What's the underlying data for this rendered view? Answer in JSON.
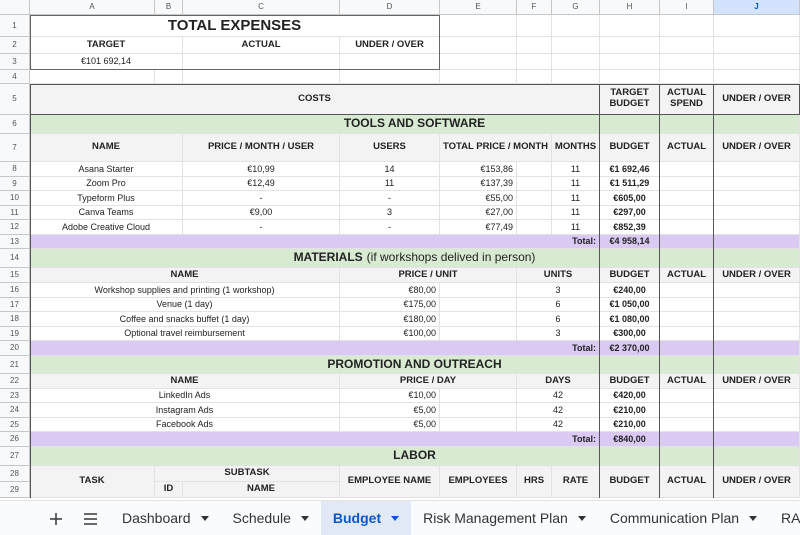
{
  "columns": [
    "A",
    "B",
    "C",
    "D",
    "E",
    "F",
    "G",
    "H",
    "I",
    "J"
  ],
  "row_numbers": [
    1,
    2,
    3,
    4,
    5,
    6,
    7,
    8,
    9,
    10,
    11,
    12,
    13,
    14,
    15,
    16,
    17,
    18,
    19,
    20,
    21,
    22,
    23,
    24,
    25,
    26,
    27,
    28,
    29
  ],
  "cells": {
    "A1": "TOTAL EXPENSES",
    "A2": "TARGET",
    "C2": "ACTUAL",
    "D2": "UNDER / OVER",
    "A3": "€101 692,14",
    "A5": "COSTS",
    "H5": "TARGET BUDGET",
    "I5": "ACTUAL SPEND",
    "J5": "UNDER / OVER",
    "A6": "TOOLS AND SOFTWARE",
    "A7": "NAME",
    "C7": "PRICE / MONTH / USER",
    "D7": "USERS",
    "E7": "TOTAL PRICE / MONTH",
    "G7": "MONTHS",
    "H7": "BUDGET",
    "I7": "ACTUAL",
    "J7": "UNDER / OVER",
    "A8": "Asana Starter",
    "C8": "€10,99",
    "D8": "14",
    "E8": "€153,86",
    "G8": "11",
    "H8": "€1 692,46",
    "A9": "Zoom Pro",
    "C9": "€12,49",
    "D9": "11",
    "E9": "€137,39",
    "G9": "11",
    "H9": "€1 511,29",
    "A10": "Typeform Plus",
    "C10": "-",
    "D10": "-",
    "E10": "€55,00",
    "G10": "11",
    "H10": "€605,00",
    "A11": "Canva Teams",
    "C11": "€9,00",
    "D11": "3",
    "E11": "€27,00",
    "G11": "11",
    "H11": "€297,00",
    "A12": "Adobe Creative Cloud",
    "C12": "-",
    "D12": "-",
    "E12": "€77,49",
    "G12": "11",
    "H12": "€852,39",
    "G13": "Total:",
    "H13": "€4 958,14",
    "A14": {
      "title": "MATERIALS",
      "note": "(if workshops delived in person)"
    },
    "A15": "NAME",
    "D15": "PRICE / UNIT",
    "F15": "UNITS",
    "H15": "BUDGET",
    "I15": "ACTUAL",
    "J15": "UNDER / OVER",
    "A16": "Workshop supplies and printing (1 workshop)",
    "D16": "€80,00",
    "F16": "3",
    "H16": "€240,00",
    "A17": "Venue (1 day)",
    "D17": "€175,00",
    "F17": "6",
    "H17": "€1 050,00",
    "A18": "Coffee and snacks buffet (1 day)",
    "D18": "€180,00",
    "F18": "6",
    "H18": "€1 080,00",
    "A19": "Optional travel reimbursement",
    "D19": "€100,00",
    "F19": "3",
    "H19": "€300,00",
    "G20": "Total:",
    "H20": "€2 370,00",
    "A21": "PROMOTION AND OUTREACH",
    "A22": "NAME",
    "D22": "PRICE / DAY",
    "F22": "DAYS",
    "H22": "BUDGET",
    "I22": "ACTUAL",
    "J22": "UNDER / OVER",
    "A23": "LinkedIn Ads",
    "D23": "€10,00",
    "F23": "42",
    "H23": "€420,00",
    "A24": "Instagram Ads",
    "D24": "€5,00",
    "F24": "42",
    "H24": "€210,00",
    "A25": "Facebook Ads",
    "D25": "€5,00",
    "F25": "42",
    "H25": "€210,00",
    "G26": "Total:",
    "H26": "€840,00",
    "A27": "LABOR",
    "A28": "TASK",
    "B28": "SUBTASK",
    "D28": "EMPLOYEE NAME",
    "E28": "EMPLOYEES",
    "F28": "HRS",
    "G28": "RATE",
    "H28": "BUDGET",
    "I28": "ACTUAL",
    "J28": "UNDER / OVER",
    "B29": "ID",
    "C29": "NAME"
  },
  "tabs": [
    "Dashboard",
    "Schedule",
    "Budget",
    "Risk Management Plan",
    "Communication Plan",
    "RACI"
  ],
  "active_tab": "Budget"
}
